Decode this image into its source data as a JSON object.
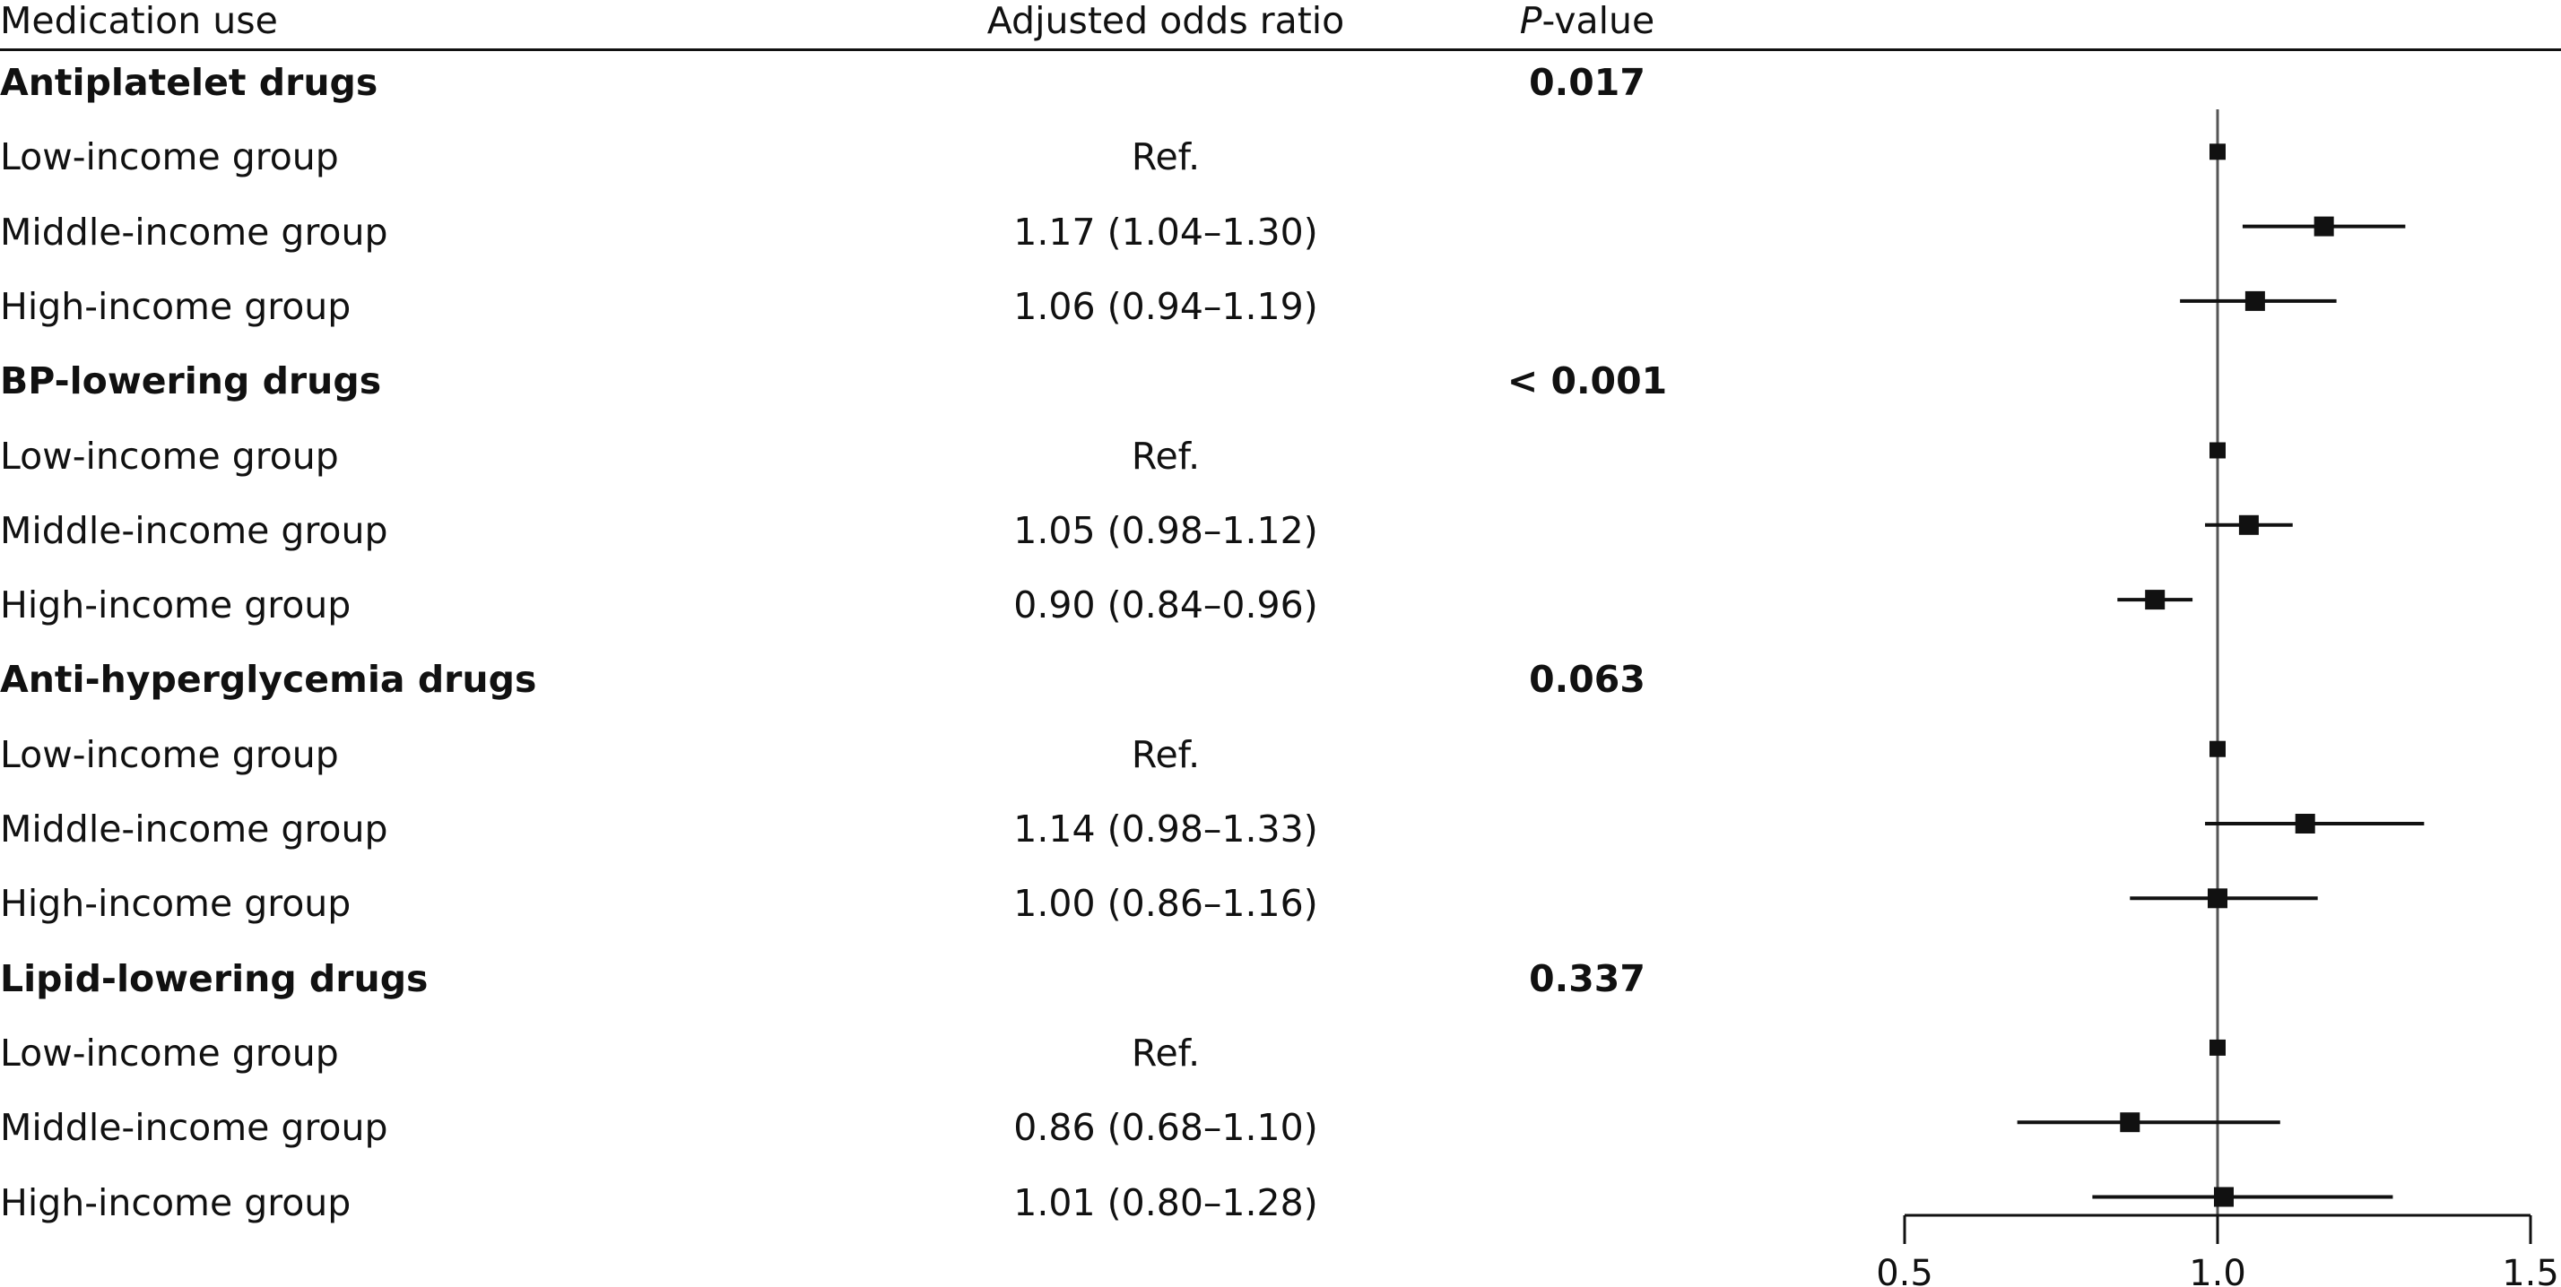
{
  "headers": {
    "medication": "Medication use",
    "or": "Adjusted odds ratio",
    "p_italic": "P",
    "p_rest": "-value"
  },
  "groups": [
    {
      "name": "Antiplatelet drugs",
      "p": "0.017",
      "rows": [
        {
          "label": "Low-income group",
          "or_text": "Ref.",
          "est": 1.0,
          "ref": true
        },
        {
          "label": "Middle-income group",
          "or_text": "1.17 (1.04–1.30)",
          "est": 1.17,
          "lo": 1.04,
          "hi": 1.3
        },
        {
          "label": "High-income group",
          "or_text": "1.06 (0.94–1.19)",
          "est": 1.06,
          "lo": 0.94,
          "hi": 1.19
        }
      ]
    },
    {
      "name": "BP-lowering drugs",
      "p": "< 0.001",
      "rows": [
        {
          "label": "Low-income group",
          "or_text": "Ref.",
          "est": 1.0,
          "ref": true
        },
        {
          "label": "Middle-income group",
          "or_text": "1.05 (0.98–1.12)",
          "est": 1.05,
          "lo": 0.98,
          "hi": 1.12
        },
        {
          "label": "High-income group",
          "or_text": "0.90 (0.84–0.96)",
          "est": 0.9,
          "lo": 0.84,
          "hi": 0.96
        }
      ]
    },
    {
      "name": "Anti-hyperglycemia drugs",
      "p": "0.063",
      "rows": [
        {
          "label": "Low-income group",
          "or_text": "Ref.",
          "est": 1.0,
          "ref": true
        },
        {
          "label": "Middle-income group",
          "or_text": "1.14 (0.98–1.33)",
          "est": 1.14,
          "lo": 0.98,
          "hi": 1.33
        },
        {
          "label": "High-income group",
          "or_text": "1.00 (0.86–1.16)",
          "est": 1.0,
          "lo": 0.86,
          "hi": 1.16
        }
      ]
    },
    {
      "name": "Lipid-lowering drugs",
      "p": "0.337",
      "rows": [
        {
          "label": "Low-income group",
          "or_text": "Ref.",
          "est": 1.0,
          "ref": true
        },
        {
          "label": "Middle-income group",
          "or_text": "0.86 (0.68–1.10)",
          "est": 0.86,
          "lo": 0.68,
          "hi": 1.1
        },
        {
          "label": "High-income group",
          "or_text": "1.01 (0.80–1.28)",
          "est": 1.01,
          "lo": 0.8,
          "hi": 1.28
        }
      ]
    }
  ],
  "chart_data": {
    "type": "forest",
    "xlim": [
      0.5,
      1.5
    ],
    "ticks": [
      0.5,
      1.0,
      1.5
    ],
    "tick_labels": [
      "0.5",
      "1.0",
      "1.5"
    ],
    "reference_line": 1.0,
    "grid": false,
    "marker": "square",
    "color": "#111111"
  }
}
